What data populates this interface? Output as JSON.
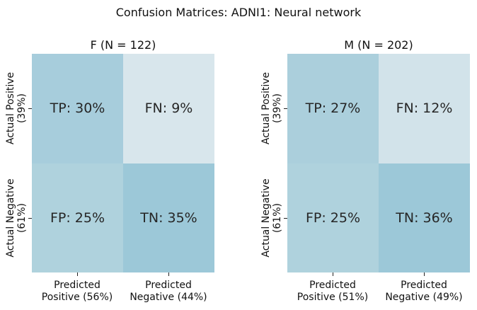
{
  "chart_data": {
    "type": "heatmap",
    "title": "Confusion Matrices: ADNI1: Neural network",
    "panels": [
      {
        "title": "F (N = 122)",
        "row_labels": [
          "Actual Positive\n(39%)",
          "Actual Negative\n(61%)"
        ],
        "col_labels": [
          "Predicted\nPositive (56%)",
          "Predicted\nNegative (44%)"
        ],
        "cells": [
          [
            {
              "label": "TP: 30%",
              "value": 30,
              "color": "#a7cddc"
            },
            {
              "label": "FN: 9%",
              "value": 9,
              "color": "#d8e6ec"
            }
          ],
          [
            {
              "label": "FP: 25%",
              "value": 25,
              "color": "#afd2dd"
            },
            {
              "label": "TN: 35%",
              "value": 35,
              "color": "#9cc8d8"
            }
          ]
        ]
      },
      {
        "title": "M (N = 202)",
        "row_labels": [
          "Actual Positive\n(39%)",
          "Actual Negative\n(61%)"
        ],
        "col_labels": [
          "Predicted\nPositive (51%)",
          "Predicted\nNegative (49%)"
        ],
        "cells": [
          [
            {
              "label": "TP: 27%",
              "value": 27,
              "color": "#abcfdc"
            },
            {
              "label": "FN: 12%",
              "value": 12,
              "color": "#d2e3ea"
            }
          ],
          [
            {
              "label": "FP: 25%",
              "value": 25,
              "color": "#afd2dd"
            },
            {
              "label": "TN: 36%",
              "value": 36,
              "color": "#9cc8d8"
            }
          ]
        ]
      }
    ]
  }
}
